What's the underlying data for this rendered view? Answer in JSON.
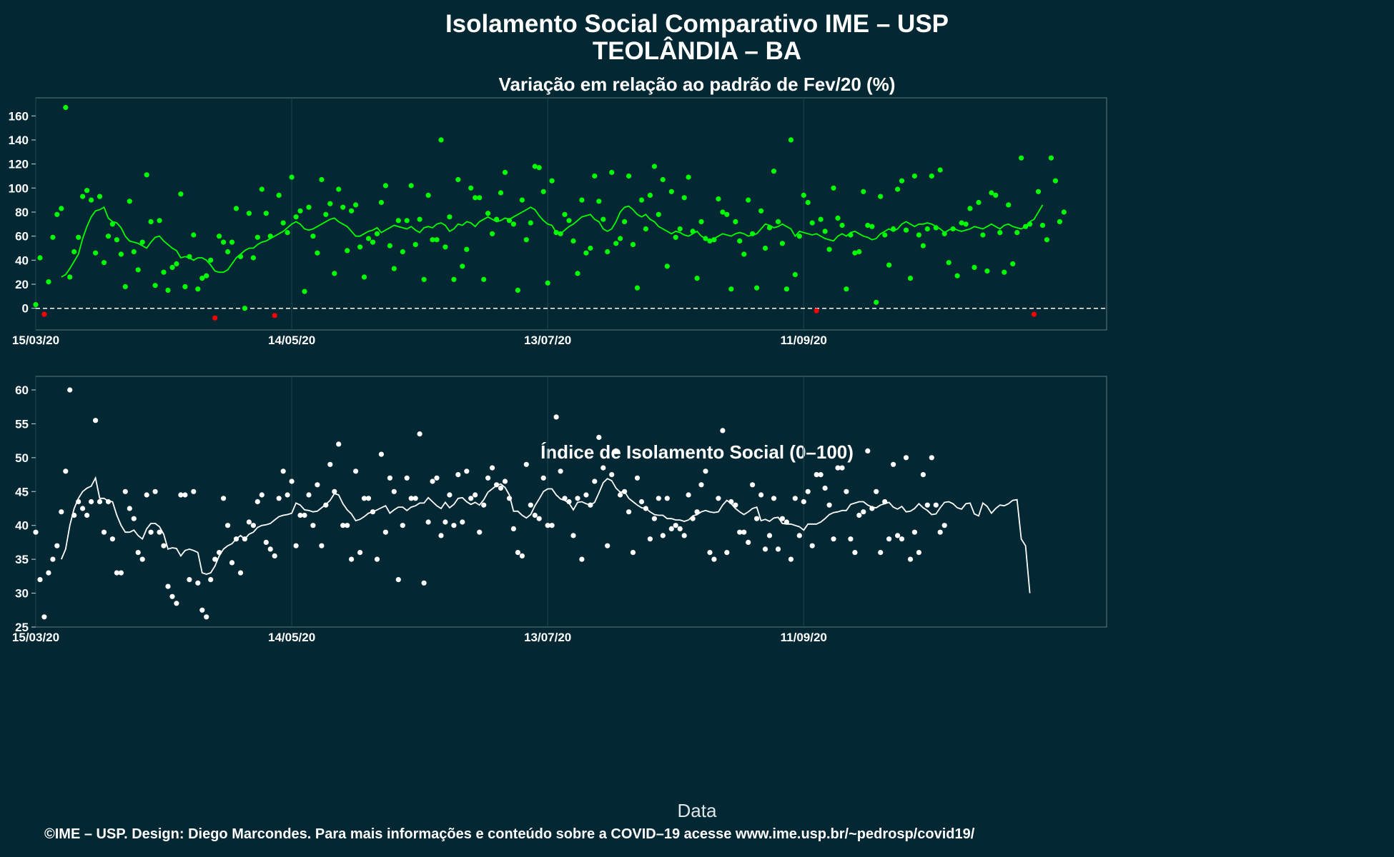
{
  "title": "Isolamento Social Comparativo IME – USP",
  "subtitle": "TEOLÂNDIA – BA",
  "xlabel": "Data",
  "footer": "©IME – USP. Design: Diego Marcondes. Para mais informações e conteúdo sobre a COVID–19 acesse www.ime.usp.br/~pedrosp/covid19/",
  "colors": {
    "background": "#032833",
    "panel_border": "#5d7a80",
    "grid": "#1d4650",
    "positive": "#00ff00",
    "negative": "#ff0000",
    "index_points": "#ffffff",
    "zero_line": "#ffffff"
  },
  "chart_data": [
    {
      "type": "scatter",
      "title": "Variação em relação ao padrão de Fev/20 (%)",
      "xlabel": "",
      "ylabel": "",
      "x_start": "15/03/20",
      "x_ticks": [
        "15/03/20",
        "14/05/20",
        "13/07/20",
        "11/09/20"
      ],
      "y_ticks": [
        0,
        20,
        40,
        60,
        80,
        100,
        120,
        140,
        160
      ],
      "xlim": [
        "15/03/20",
        "21/11/20"
      ],
      "ylim": [
        -18,
        175
      ],
      "grid": true,
      "reference_line": 0,
      "series": [
        {
          "values": [
            3,
            42,
            -5,
            22,
            59,
            78,
            83,
            167,
            26,
            47,
            59,
            93,
            98,
            90,
            46,
            93,
            38,
            60,
            70,
            57,
            45,
            18,
            89,
            47,
            32,
            55,
            111,
            72,
            19,
            73,
            30,
            15,
            34,
            37,
            95,
            18,
            43,
            61,
            16,
            25,
            27,
            40,
            -8,
            60,
            55,
            47,
            55,
            83,
            43,
            0,
            79,
            42,
            59,
            99,
            79,
            60,
            -6,
            94,
            71,
            63,
            109,
            76,
            81,
            14,
            84,
            60,
            46,
            107,
            78,
            87,
            29,
            99,
            84,
            48,
            81,
            86,
            51,
            26,
            58,
            55,
            62,
            88,
            102,
            52,
            33,
            73,
            47,
            73,
            102,
            53,
            74,
            24,
            94,
            57,
            57,
            140,
            51,
            76,
            24,
            107,
            35,
            49,
            100,
            92,
            92,
            24,
            79,
            62,
            74,
            96,
            113,
            73,
            70,
            15,
            90,
            57,
            71,
            118,
            117,
            97,
            21,
            106,
            63,
            62,
            78,
            73,
            56,
            29,
            90,
            46,
            50,
            110,
            89,
            74,
            47,
            113,
            54,
            58,
            72,
            110,
            53,
            17,
            90,
            66,
            94,
            118,
            78,
            107,
            35,
            97,
            59,
            66,
            92,
            109,
            64,
            25,
            72,
            58,
            56,
            57,
            91,
            80,
            78,
            16,
            72,
            56,
            45,
            90,
            62,
            17,
            81,
            50,
            67,
            114,
            72,
            54,
            16,
            140,
            28,
            60,
            94,
            88,
            71,
            -2,
            74,
            64,
            49,
            100,
            75,
            69,
            16,
            61,
            46,
            47,
            97,
            69,
            68,
            5,
            93,
            61,
            36,
            66,
            99,
            106,
            65,
            25,
            110,
            61,
            52,
            66,
            110,
            67,
            115,
            62,
            38,
            66,
            27,
            71,
            70,
            83,
            34,
            88,
            61,
            31,
            96,
            94,
            63,
            30,
            86,
            37,
            63,
            125,
            68,
            70,
            -5,
            97,
            69,
            57,
            125,
            106,
            72,
            80
          ]
        },
        {
          "name": "moving average",
          "values": [
            26,
            28,
            33,
            39,
            45,
            58,
            68,
            76,
            81,
            82,
            84,
            75,
            72,
            71,
            67,
            60,
            56,
            55,
            54,
            52,
            50,
            55,
            59,
            60,
            56,
            53,
            50,
            48,
            42,
            43,
            42,
            40,
            42,
            42,
            40,
            36,
            31,
            30,
            30,
            32,
            37,
            42,
            45,
            48,
            50,
            50,
            53,
            55,
            56,
            58,
            60,
            62,
            64,
            67,
            70,
            72,
            70,
            66,
            65,
            66,
            68,
            70,
            72,
            74,
            75,
            72,
            70,
            68,
            64,
            60,
            60,
            62,
            64,
            65,
            67,
            63,
            65,
            67,
            69,
            68,
            67,
            66,
            68,
            65,
            63,
            67,
            68,
            67,
            70,
            71,
            69,
            64,
            66,
            70,
            69,
            72,
            71,
            68,
            72,
            74,
            76,
            74,
            72,
            73,
            75,
            74,
            76,
            78,
            80,
            82,
            84,
            82,
            77,
            73,
            70,
            69,
            63,
            62,
            65,
            68,
            70,
            73,
            76,
            77,
            78,
            74,
            72,
            66,
            64,
            66,
            72,
            80,
            84,
            85,
            82,
            78,
            76,
            78,
            74,
            72,
            68,
            66,
            64,
            62,
            64,
            63,
            61,
            60,
            62,
            64,
            60,
            58,
            56,
            58,
            60,
            62,
            61,
            60,
            62,
            63,
            62,
            60,
            61,
            62,
            66,
            70,
            69,
            67,
            68,
            70,
            68,
            66,
            60,
            64,
            63,
            62,
            61,
            62,
            60,
            58,
            57,
            56,
            60,
            62,
            60,
            63,
            64,
            62,
            60,
            59,
            57,
            58,
            62,
            64,
            66,
            64,
            66,
            70,
            72,
            70,
            68,
            70,
            70,
            71,
            70,
            68,
            66,
            63,
            65,
            67,
            65,
            64,
            65,
            66,
            68,
            67,
            66,
            68,
            70,
            68,
            66,
            69,
            70,
            68,
            67,
            66,
            68,
            72,
            74,
            80,
            86
          ]
        }
      ]
    },
    {
      "type": "scatter",
      "title": "Índice de Isolamento Social (0–100)",
      "xlabel": "Data",
      "ylabel": "",
      "x_start": "15/03/20",
      "x_ticks": [
        "15/03/20",
        "14/05/20",
        "13/07/20",
        "11/09/20"
      ],
      "y_ticks": [
        25,
        30,
        35,
        40,
        45,
        50,
        55,
        60
      ],
      "xlim": [
        "15/03/20",
        "21/11/20"
      ],
      "ylim": [
        25,
        62
      ],
      "grid": true,
      "series": [
        {
          "values": [
            39,
            32,
            26.5,
            33,
            35,
            37,
            42,
            48,
            60,
            41.5,
            43.5,
            42.5,
            41.5,
            43.5,
            55.5,
            43.5,
            39,
            43.5,
            38,
            33,
            33,
            45,
            42.5,
            41,
            36,
            35,
            44.5,
            39,
            45,
            39,
            37,
            31,
            29.5,
            28.5,
            44.5,
            44.5,
            32,
            45,
            31.5,
            27.5,
            26.5,
            32,
            35,
            36,
            44,
            40,
            34.5,
            38,
            33,
            38,
            40.5,
            40,
            43.5,
            44.5,
            37.5,
            36.5,
            35.5,
            44,
            48,
            44.5,
            46.5,
            37,
            41.5,
            41.5,
            44.5,
            40,
            46,
            37,
            43,
            49,
            45,
            52,
            40,
            40,
            35,
            48,
            36,
            44,
            44,
            42,
            35,
            50.5,
            39,
            47,
            45,
            32,
            40,
            47,
            44,
            44,
            53.5,
            31.5,
            40.5,
            46.5,
            47,
            38.5,
            40.5,
            44.5,
            40,
            47.5,
            40.5,
            48,
            44,
            44.5,
            39,
            43,
            47,
            48.5,
            46,
            45.5,
            46.5,
            44,
            39.5,
            36,
            35.5,
            49,
            43,
            41.5,
            41,
            47,
            40,
            40,
            56,
            48,
            44,
            43.5,
            38.5,
            44,
            35,
            44.5,
            43,
            46.5,
            53,
            48.5,
            37,
            47.5,
            51,
            44.5,
            45,
            42,
            36,
            47,
            43.5,
            42.5,
            38,
            41,
            44,
            38.5,
            44,
            39.5,
            40,
            39.5,
            38.5,
            44.5,
            41,
            42,
            46,
            48,
            36,
            35,
            44,
            54,
            36,
            43.5,
            43,
            39,
            39,
            37.5,
            46,
            41,
            44.5,
            36.5,
            38.5,
            44,
            36.5,
            41,
            40.5,
            35,
            44,
            38.5,
            43.5,
            45,
            37,
            47.5,
            47.5,
            45.5,
            43,
            38,
            48.5,
            48.5,
            45,
            38,
            36,
            41.5,
            42,
            51,
            42.5,
            45,
            36,
            43.5,
            38,
            49,
            38.5,
            38,
            50,
            35,
            39,
            36,
            47.5,
            43,
            50,
            43,
            39,
            40
          ]
        },
        {
          "name": "moving average",
          "values": [
            35,
            36.5,
            40,
            42.5,
            44,
            45,
            45.5,
            45.8,
            47,
            44,
            44,
            43.6,
            43.5,
            41.5,
            40,
            39,
            39,
            39.3,
            38.5,
            38,
            39.5,
            40.3,
            40.3,
            39.8,
            38.7,
            36.5,
            36.7,
            36.6,
            35.5,
            36.3,
            36.5,
            36.3,
            36,
            33,
            32.8,
            33,
            34,
            35.5,
            36.5,
            37,
            37.3,
            38,
            38.5,
            38,
            38.7,
            39,
            39.7,
            40,
            40.1,
            40.3,
            40.8,
            41.3,
            41.5,
            41.6,
            41.8,
            43.3,
            43,
            42.3,
            42.2,
            42,
            42.1,
            42.6,
            43.1,
            43.7,
            44.7,
            44.5,
            43.2,
            42.3,
            41.7,
            40.7,
            40.9,
            41.3,
            41.8,
            42,
            42.3,
            42.6,
            42.9,
            41.8,
            42.3,
            42.7,
            42.7,
            42.2,
            42.7,
            42.9,
            43.3,
            43.3,
            44.1,
            43.5,
            42.9,
            42.5,
            43.4,
            42.6,
            43.1,
            44,
            44.1,
            43.5,
            43.1,
            43.4,
            43,
            43.8,
            44.9,
            45.4,
            45.9,
            46.1,
            45.6,
            44.5,
            42.1,
            42.1,
            41.5,
            41.1,
            41.6,
            42.9,
            43.9,
            45,
            45.4,
            45.4,
            44.5,
            43.9,
            43.7,
            43.3,
            42.3,
            43.4,
            43.5,
            43.2,
            43,
            43.4,
            44.8,
            46.3,
            46.9,
            46.6,
            45.5,
            44.9,
            45,
            44,
            43.5,
            43,
            42.6,
            42.5,
            42,
            41.6,
            41.5,
            41.5,
            41,
            41,
            40.8,
            40.8,
            40.6,
            40.8,
            41.4,
            41.6,
            42,
            42.2,
            42,
            41.9,
            42,
            43,
            43.7,
            43.2,
            42.5,
            42,
            41.6,
            42,
            42.5,
            42.7,
            40.7,
            40.9,
            40.6,
            41.1,
            41.2,
            40.3,
            40.2,
            40.2,
            40,
            39.8,
            39.3,
            40.2,
            40.2,
            40.2,
            40.5,
            41,
            41.6,
            41.9,
            42,
            42.2,
            42.2,
            43.1,
            43.3,
            43.5,
            43.5,
            43,
            42.7,
            42.6,
            43,
            43.2,
            43.4,
            42.7,
            42.4,
            42.8,
            42,
            42.1,
            42.5,
            43.2,
            42.6,
            42.2,
            41.6,
            41.7,
            42.6,
            43.4,
            43.5,
            43.2,
            42.6,
            42.4,
            43.2,
            43.3,
            41.7,
            41.4,
            43.3,
            42.8,
            41.8,
            42.5,
            43,
            42.9,
            43.2,
            43.7,
            43.8,
            38,
            37,
            30
          ]
        }
      ]
    }
  ]
}
